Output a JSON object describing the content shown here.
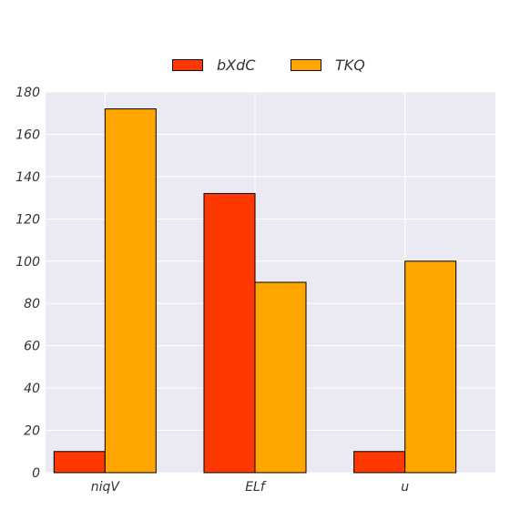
{
  "chart_data": {
    "type": "bar",
    "categories": [
      "niqV",
      "ELf",
      "u"
    ],
    "series": [
      {
        "name": "bXdC",
        "values": [
          10,
          132,
          10
        ],
        "color": "#ff3700"
      },
      {
        "name": "TKQ",
        "values": [
          172,
          90,
          100
        ],
        "color": "#ffa500"
      }
    ],
    "ylim": [
      0,
      180
    ],
    "yticks": [
      0,
      20,
      40,
      60,
      80,
      100,
      120,
      140,
      160,
      180
    ],
    "grid": true,
    "legend_position": "top-center",
    "background": "#eaeaf2"
  }
}
